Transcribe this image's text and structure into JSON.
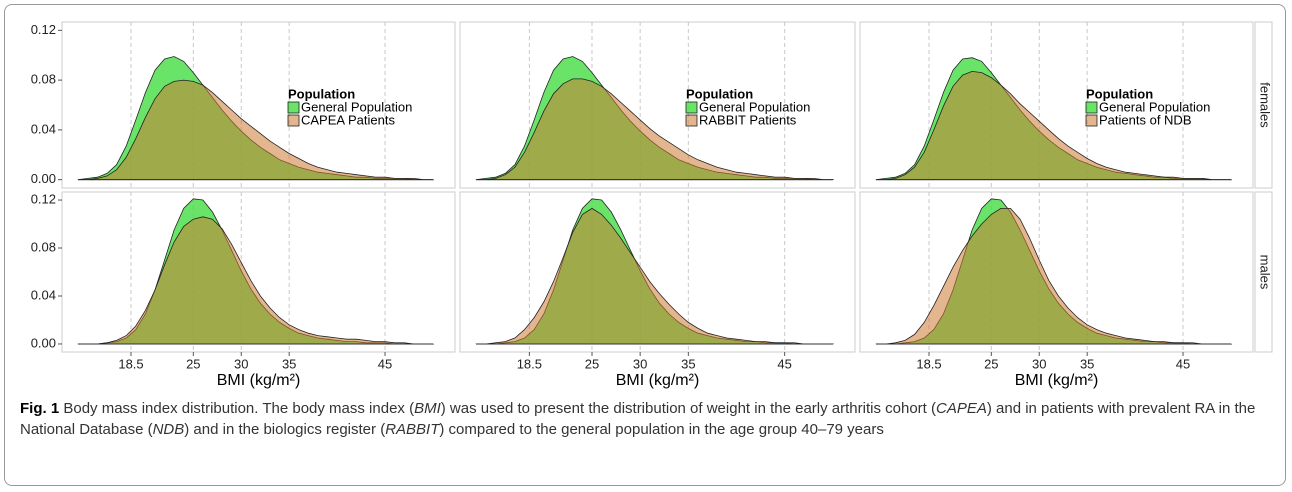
{
  "chart_data": [
    {
      "type": "area",
      "x": [
        13,
        14,
        15,
        16,
        17,
        18,
        19,
        20,
        21,
        22,
        23,
        24,
        25,
        26,
        27,
        28,
        29,
        30,
        31,
        32,
        33,
        34,
        35,
        36,
        37,
        38,
        39,
        40,
        41,
        42,
        43,
        44,
        45,
        46,
        47,
        48,
        49,
        50
      ],
      "series": [
        {
          "name": "General Population",
          "color": "#44dd44",
          "values": [
            0,
            0.001,
            0.002,
            0.005,
            0.012,
            0.027,
            0.048,
            0.07,
            0.088,
            0.097,
            0.099,
            0.095,
            0.086,
            0.076,
            0.066,
            0.056,
            0.047,
            0.039,
            0.032,
            0.026,
            0.021,
            0.016,
            0.013,
            0.01,
            0.008,
            0.006,
            0.005,
            0.004,
            0.003,
            0.002,
            0.002,
            0.001,
            0.001,
            0.001,
            0.001,
            0,
            0,
            0
          ]
        },
        {
          "name": "CAPEA Patients",
          "color": "#cc7a33",
          "values": [
            0,
            0,
            0.001,
            0.003,
            0.008,
            0.018,
            0.033,
            0.05,
            0.065,
            0.075,
            0.079,
            0.08,
            0.079,
            0.076,
            0.07,
            0.063,
            0.056,
            0.049,
            0.043,
            0.037,
            0.031,
            0.026,
            0.021,
            0.017,
            0.013,
            0.01,
            0.008,
            0.006,
            0.005,
            0.004,
            0.003,
            0.002,
            0.002,
            0.001,
            0.001,
            0.001,
            0,
            0
          ]
        }
      ],
      "xlim": [
        11.3,
        52.3
      ],
      "ylim": [
        -0.0067,
        0.1267
      ],
      "xticks": [
        18.5,
        25,
        30,
        35,
        45
      ],
      "yticks": [
        {
          "value": 0,
          "label": "0.00"
        },
        {
          "value": 0.04,
          "label": "0.04"
        },
        {
          "value": 0.08,
          "label": "0.08"
        },
        {
          "value": 0.12,
          "label": "0.12"
        }
      ],
      "grid": true,
      "legend_title": "Population"
    },
    {
      "type": "area",
      "x": [
        13,
        14,
        15,
        16,
        17,
        18,
        19,
        20,
        21,
        22,
        23,
        24,
        25,
        26,
        27,
        28,
        29,
        30,
        31,
        32,
        33,
        34,
        35,
        36,
        37,
        38,
        39,
        40,
        41,
        42,
        43,
        44,
        45,
        46,
        47,
        48,
        49,
        50
      ],
      "series": [
        {
          "name": "General Population",
          "color": "#44dd44",
          "values": [
            0,
            0.001,
            0.002,
            0.005,
            0.012,
            0.027,
            0.048,
            0.07,
            0.088,
            0.097,
            0.099,
            0.095,
            0.086,
            0.076,
            0.066,
            0.056,
            0.047,
            0.039,
            0.032,
            0.026,
            0.021,
            0.016,
            0.013,
            0.01,
            0.008,
            0.006,
            0.005,
            0.004,
            0.003,
            0.002,
            0.002,
            0.001,
            0.001,
            0.001,
            0.001,
            0,
            0,
            0
          ]
        },
        {
          "name": "RABBIT Patients",
          "color": "#cc7a33",
          "values": [
            0,
            0,
            0.001,
            0.004,
            0.01,
            0.022,
            0.038,
            0.055,
            0.069,
            0.077,
            0.081,
            0.081,
            0.079,
            0.075,
            0.069,
            0.062,
            0.055,
            0.048,
            0.041,
            0.035,
            0.03,
            0.025,
            0.02,
            0.016,
            0.013,
            0.01,
            0.008,
            0.006,
            0.005,
            0.004,
            0.003,
            0.002,
            0.002,
            0.001,
            0.001,
            0.001,
            0,
            0
          ]
        }
      ],
      "xlim": [
        11.3,
        52.3
      ],
      "ylim": [
        -0.0067,
        0.1267
      ],
      "xticks": [
        18.5,
        25,
        30,
        35,
        45
      ],
      "grid": true,
      "legend_title": "Population"
    },
    {
      "type": "area",
      "x": [
        13,
        14,
        15,
        16,
        17,
        18,
        19,
        20,
        21,
        22,
        23,
        24,
        25,
        26,
        27,
        28,
        29,
        30,
        31,
        32,
        33,
        34,
        35,
        36,
        37,
        38,
        39,
        40,
        41,
        42,
        43,
        44,
        45,
        46,
        47,
        48,
        49,
        50
      ],
      "series": [
        {
          "name": "General Population",
          "color": "#44dd44",
          "values": [
            0,
            0.001,
            0.002,
            0.005,
            0.012,
            0.027,
            0.048,
            0.07,
            0.088,
            0.097,
            0.098,
            0.095,
            0.086,
            0.076,
            0.066,
            0.056,
            0.047,
            0.039,
            0.032,
            0.026,
            0.021,
            0.016,
            0.013,
            0.01,
            0.008,
            0.006,
            0.005,
            0.004,
            0.003,
            0.002,
            0.002,
            0.001,
            0.001,
            0.001,
            0.001,
            0,
            0,
            0
          ]
        },
        {
          "name": "Patients of NDB",
          "color": "#cc7a33",
          "values": [
            0,
            0,
            0.001,
            0.004,
            0.01,
            0.022,
            0.04,
            0.059,
            0.075,
            0.084,
            0.087,
            0.086,
            0.082,
            0.076,
            0.069,
            0.061,
            0.054,
            0.047,
            0.04,
            0.033,
            0.027,
            0.022,
            0.017,
            0.013,
            0.01,
            0.008,
            0.006,
            0.005,
            0.004,
            0.003,
            0.002,
            0.002,
            0.001,
            0.001,
            0.001,
            0,
            0,
            0
          ]
        }
      ],
      "xlim": [
        11.3,
        52.3
      ],
      "ylim": [
        -0.0067,
        0.1267
      ],
      "xticks": [
        18.5,
        25,
        30,
        35,
        45
      ],
      "grid": true,
      "legend_title": "Population",
      "facet": "females"
    },
    {
      "type": "area",
      "x": [
        13,
        14,
        15,
        16,
        17,
        18,
        19,
        20,
        21,
        22,
        23,
        24,
        25,
        26,
        27,
        28,
        29,
        30,
        31,
        32,
        33,
        34,
        35,
        36,
        37,
        38,
        39,
        40,
        41,
        42,
        43,
        44,
        45,
        46,
        47,
        48,
        49,
        50
      ],
      "series": [
        {
          "color": "#44dd44",
          "values": [
            0,
            0,
            0,
            0.001,
            0.002,
            0.005,
            0.012,
            0.025,
            0.045,
            0.07,
            0.095,
            0.113,
            0.121,
            0.12,
            0.11,
            0.095,
            0.078,
            0.061,
            0.046,
            0.034,
            0.025,
            0.018,
            0.013,
            0.009,
            0.007,
            0.005,
            0.004,
            0.003,
            0.002,
            0.002,
            0.001,
            0.001,
            0.001,
            0,
            0,
            0,
            0,
            0
          ]
        },
        {
          "color": "#cc7a33",
          "values": [
            0,
            0,
            0,
            0.001,
            0.003,
            0.007,
            0.015,
            0.028,
            0.045,
            0.066,
            0.085,
            0.098,
            0.104,
            0.106,
            0.104,
            0.096,
            0.083,
            0.068,
            0.053,
            0.04,
            0.03,
            0.022,
            0.016,
            0.012,
            0.009,
            0.007,
            0.006,
            0.005,
            0.004,
            0.004,
            0.003,
            0.002,
            0.002,
            0.001,
            0.001,
            0,
            0,
            0
          ]
        }
      ],
      "xlim": [
        11.3,
        52.3
      ],
      "ylim": [
        -0.0067,
        0.1267
      ],
      "xticks": [
        18.5,
        25,
        30,
        35,
        45
      ],
      "yticks": [
        {
          "value": 0,
          "label": "0.00"
        },
        {
          "value": 0.04,
          "label": "0.04"
        },
        {
          "value": 0.08,
          "label": "0.08"
        },
        {
          "value": 0.12,
          "label": "0.12"
        }
      ],
      "grid": true,
      "x_label": "BMI (kg/m²)"
    },
    {
      "type": "area",
      "x": [
        13,
        14,
        15,
        16,
        17,
        18,
        19,
        20,
        21,
        22,
        23,
        24,
        25,
        26,
        27,
        28,
        29,
        30,
        31,
        32,
        33,
        34,
        35,
        36,
        37,
        38,
        39,
        40,
        41,
        42,
        43,
        44,
        45,
        46,
        47,
        48,
        49,
        50
      ],
      "series": [
        {
          "color": "#44dd44",
          "values": [
            0,
            0,
            0,
            0.001,
            0.002,
            0.005,
            0.012,
            0.025,
            0.045,
            0.07,
            0.095,
            0.113,
            0.121,
            0.12,
            0.11,
            0.095,
            0.078,
            0.061,
            0.046,
            0.034,
            0.025,
            0.018,
            0.013,
            0.009,
            0.007,
            0.005,
            0.004,
            0.003,
            0.002,
            0.002,
            0.001,
            0.001,
            0.001,
            0,
            0,
            0,
            0,
            0
          ]
        },
        {
          "color": "#cc7a33",
          "values": [
            0,
            0,
            0.001,
            0.002,
            0.005,
            0.012,
            0.022,
            0.035,
            0.052,
            0.072,
            0.093,
            0.108,
            0.113,
            0.108,
            0.099,
            0.088,
            0.076,
            0.064,
            0.052,
            0.042,
            0.033,
            0.025,
            0.018,
            0.013,
            0.009,
            0.007,
            0.005,
            0.004,
            0.003,
            0.002,
            0.002,
            0.001,
            0.001,
            0.001,
            0,
            0,
            0,
            0
          ]
        }
      ],
      "xlim": [
        11.3,
        52.3
      ],
      "ylim": [
        -0.0067,
        0.1267
      ],
      "xticks": [
        18.5,
        25,
        30,
        35,
        45
      ],
      "grid": true,
      "x_label": "BMI (kg/m²)"
    },
    {
      "type": "area",
      "x": [
        13,
        14,
        15,
        16,
        17,
        18,
        19,
        20,
        21,
        22,
        23,
        24,
        25,
        26,
        27,
        28,
        29,
        30,
        31,
        32,
        33,
        34,
        35,
        36,
        37,
        38,
        39,
        40,
        41,
        42,
        43,
        44,
        45,
        46,
        47,
        48,
        49,
        50
      ],
      "series": [
        {
          "color": "#44dd44",
          "values": [
            0,
            0,
            0,
            0.001,
            0.002,
            0.005,
            0.012,
            0.025,
            0.045,
            0.07,
            0.095,
            0.113,
            0.121,
            0.12,
            0.11,
            0.095,
            0.078,
            0.061,
            0.046,
            0.034,
            0.025,
            0.018,
            0.013,
            0.009,
            0.007,
            0.005,
            0.004,
            0.003,
            0.002,
            0.002,
            0.001,
            0.001,
            0.001,
            0,
            0,
            0,
            0,
            0
          ]
        },
        {
          "color": "#cc7a33",
          "values": [
            0,
            0,
            0.001,
            0.003,
            0.008,
            0.018,
            0.032,
            0.048,
            0.064,
            0.078,
            0.09,
            0.1,
            0.108,
            0.113,
            0.113,
            0.104,
            0.088,
            0.07,
            0.053,
            0.04,
            0.03,
            0.022,
            0.016,
            0.012,
            0.009,
            0.007,
            0.005,
            0.004,
            0.003,
            0.002,
            0.002,
            0.001,
            0.001,
            0.001,
            0,
            0,
            0,
            0
          ]
        }
      ],
      "xlim": [
        11.3,
        52.3
      ],
      "ylim": [
        -0.0067,
        0.1267
      ],
      "xticks": [
        18.5,
        25,
        30,
        35,
        45
      ],
      "grid": true,
      "x_label": "BMI (kg/m²)",
      "facet": "males"
    }
  ],
  "caption": {
    "label": "Fig. 1",
    "segments": [
      "Body mass index distribution. The body mass index (",
      "BMI",
      ") was used to present the distribution of weight in the early arthritis cohort (",
      "CAPEA",
      ") and in patients with prevalent RA in the National Database (",
      "NDB",
      ") and in the biologics register (",
      "RABBIT",
      ") compared to the general population in the age group 40–79 years"
    ]
  }
}
